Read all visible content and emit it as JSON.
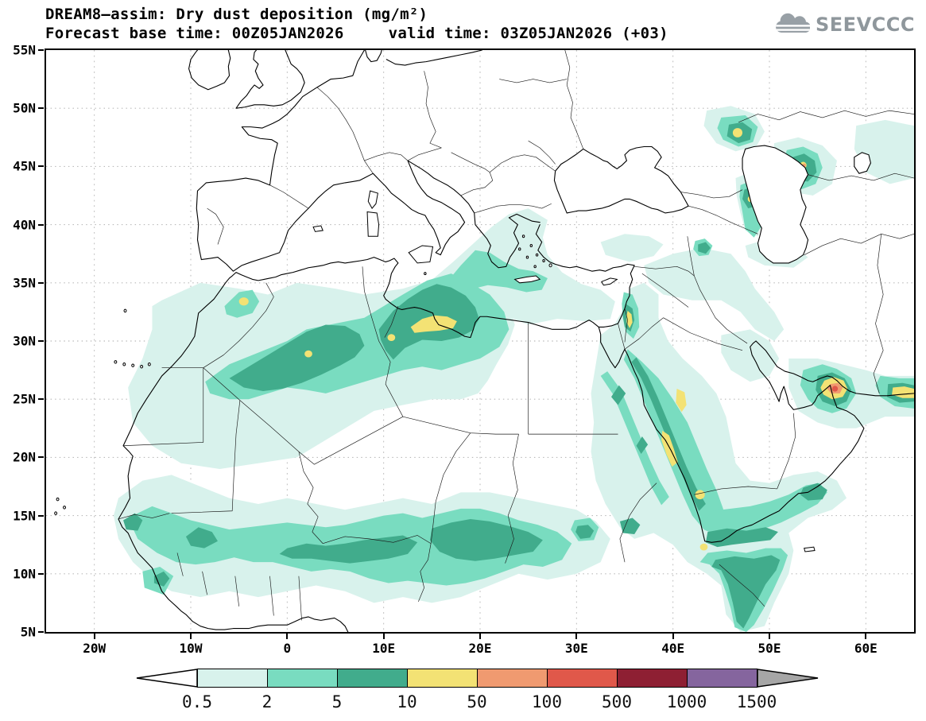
{
  "header": {
    "title": "DREAM8–assim: Dry dust deposition (mg/m²)",
    "base_time_text": "Forecast base time: 00Z05JAN2026",
    "valid_time_text": "valid time: 03Z05JAN2026 (+03)",
    "logo_text": "SEEVCCC"
  },
  "chart_data": {
    "type": "heatmap",
    "title": "DREAM8–assim: Dry dust deposition (mg/m²)",
    "model": "DREAM8-assim",
    "variable": "Dry dust deposition",
    "units": "mg/m²",
    "forecast_base_time": "00Z05JAN2026",
    "valid_time": "03Z05JAN2026",
    "forecast_step": "+03",
    "projection": "latlon",
    "lon_range_deg": [
      -25,
      65
    ],
    "lat_range_deg": [
      5,
      55
    ],
    "x_tick_labels": [
      "20W",
      "10W",
      "0",
      "10E",
      "20E",
      "30E",
      "40E",
      "50E",
      "60E"
    ],
    "y_tick_labels": [
      "5N",
      "10N",
      "15N",
      "20N",
      "25N",
      "30N",
      "35N",
      "40N",
      "45N",
      "50N",
      "55N"
    ],
    "grid": "dotted",
    "legend_position": "bottom",
    "colorbar": {
      "orientation": "horizontal",
      "levels": [
        "0.5",
        "2",
        "5",
        "10",
        "50",
        "100",
        "500",
        "1000",
        "1500"
      ],
      "segment_colors": [
        "#d8f2ec",
        "#79dcc0",
        "#41ac8c",
        "#f3e274",
        "#f09a70",
        "#e0584a",
        "#8e1f33",
        "#85659e"
      ],
      "below_color": "#ffffff",
      "above_color": "#a6a6a6"
    },
    "features": [
      {
        "region": "Sahara band Algeria–Libya (25N–35N)",
        "deposition_mg_m2": "2–10"
      },
      {
        "region": "Central Algeria core",
        "deposition_mg_m2": "5–10"
      },
      {
        "region": "NW Libya (Tripolitania) maximum",
        "deposition_mg_m2": "10–50"
      },
      {
        "region": "Morocco Atlas spot (~4W, 33.5N)",
        "deposition_mg_m2": "10–50"
      },
      {
        "region": "Sahel band 8N–16N from Senegal to Sudan",
        "deposition_mg_m2": "0.5–10"
      },
      {
        "region": "Mediterranean plume Libya toward Greece/Aegean",
        "deposition_mg_m2": "0.5–5"
      },
      {
        "region": "Levant / Dead Sea area",
        "deposition_mg_m2": "10–50"
      },
      {
        "region": "Red Sea coasts and Hejaz–Asir chain (Saudi Arabia)",
        "deposition_mg_m2": "2–50"
      },
      {
        "region": "Gulf of Aden / northern Somalia coast",
        "deposition_mg_m2": "2–10"
      },
      {
        "region": "Strait of Hormuz / Gulf of Oman maximum",
        "deposition_mg_m2": "50–500"
      },
      {
        "region": "Makran coast near right edge (~25N)",
        "deposition_mg_m2": "10–50"
      },
      {
        "region": "NW of Caspian, Kazakhstan spot (~47E, 48N)",
        "deposition_mg_m2": "5–50"
      },
      {
        "region": "East of Caspian spot (~53E, 45N)",
        "deposition_mg_m2": "5–50"
      },
      {
        "region": "Azerbaijan / west Caspian coast",
        "deposition_mg_m2": "2–10"
      }
    ]
  }
}
